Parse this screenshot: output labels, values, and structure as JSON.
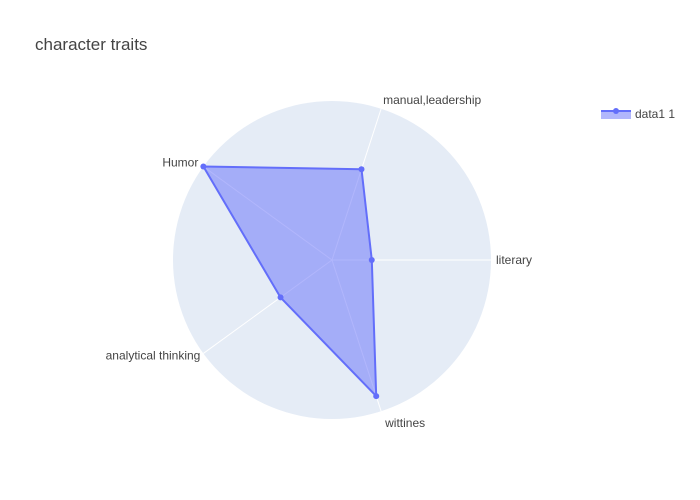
{
  "chart_data": {
    "type": "radar",
    "title": "character traits",
    "categories": [
      "literary",
      "manual,leadership",
      "Humor",
      "analytical thinking",
      "wittines"
    ],
    "series": [
      {
        "name": "data1 1",
        "values": [
          0.25,
          0.6,
          1.0,
          0.4,
          0.9
        ]
      }
    ],
    "radial_range": [
      0,
      1
    ],
    "grid": true,
    "legend_position": "top-right",
    "colors": {
      "polar_background": "#e5ecf6",
      "grid_line": "#ffffff",
      "series_line": "#636efa",
      "series_fill": "rgba(99,110,250,0.5)",
      "text": "#444444"
    }
  }
}
